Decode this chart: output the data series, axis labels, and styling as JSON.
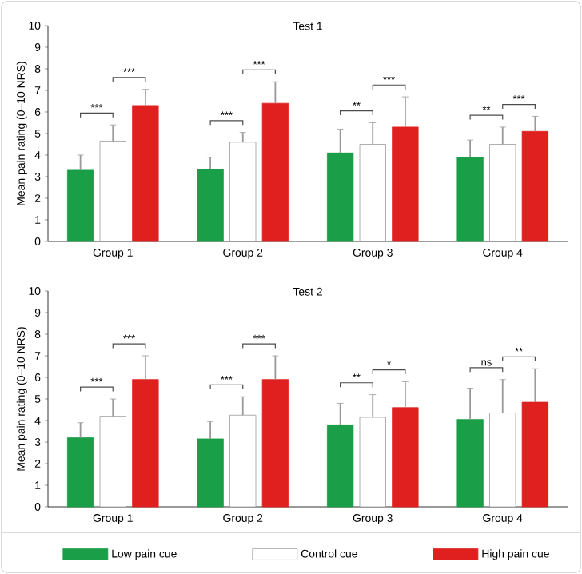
{
  "chart_data": [
    {
      "type": "bar",
      "title": "Test 1",
      "ylabel": "Mean pain rating (0–10 NRS)",
      "categories": [
        "Group 1",
        "Group 2",
        "Group 3",
        "Group 4"
      ],
      "series": [
        {
          "color": "#1a9e48",
          "values": [
            3.3,
            3.35,
            4.1,
            3.9
          ],
          "errors": [
            0.7,
            0.55,
            1.1,
            0.8
          ]
        },
        {
          "color": "#ffffff",
          "values": [
            4.65,
            4.6,
            4.5,
            4.5
          ],
          "errors": [
            0.75,
            0.45,
            1.0,
            0.8
          ]
        },
        {
          "color": "#e0201f",
          "values": [
            6.3,
            6.4,
            5.3,
            5.1
          ],
          "errors": [
            0.75,
            1.0,
            1.4,
            0.7
          ]
        }
      ],
      "ylim": [
        0,
        10
      ],
      "yticks": [
        0,
        1,
        2,
        3,
        4,
        5,
        6,
        7,
        8,
        9,
        10
      ],
      "annotations": [
        "***",
        "***",
        "***",
        "***",
        "**",
        "***",
        "**",
        "***"
      ]
    },
    {
      "type": "bar",
      "title": "Test 2",
      "ylabel": "Mean pain rating (0–10 NRS)",
      "categories": [
        "Group 1",
        "Group 2",
        "Group 3",
        "Group 4"
      ],
      "series": [
        {
          "name": "Low pain cue",
          "color": "#1a9e48",
          "values": [
            3.2,
            3.15,
            3.8,
            4.05
          ],
          "errors": [
            0.7,
            0.8,
            1.0,
            1.45
          ]
        },
        {
          "name": "Control cue",
          "color": "#ffffff",
          "values": [
            4.2,
            4.25,
            4.15,
            4.35
          ],
          "errors": [
            0.8,
            0.85,
            1.05,
            1.55
          ]
        },
        {
          "name": "High pain cue",
          "color": "#e0201f",
          "values": [
            5.9,
            5.9,
            4.6,
            4.85
          ],
          "errors": [
            1.1,
            1.1,
            1.2,
            1.55
          ]
        }
      ],
      "ylim": [
        0,
        10
      ],
      "yticks": [
        0,
        1,
        2,
        3,
        4,
        5,
        6,
        7,
        8,
        9,
        10
      ],
      "annotations": [
        "***",
        "***",
        "***",
        "***",
        "**",
        "*",
        "ns",
        "**"
      ],
      "legend": "bottom"
    }
  ]
}
